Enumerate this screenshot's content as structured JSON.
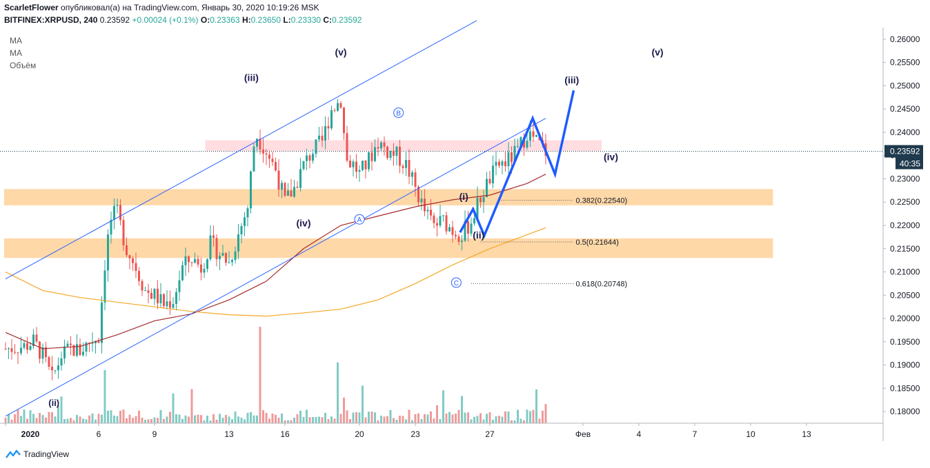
{
  "header": {
    "author": "ScarletFlower",
    "published_text": "опубликовал(а) на TradingView.com, Январь 30, 2020 10:19:26 MSK",
    "symbol": "BITFINEX:XRPUSD, 240",
    "price": "0.23592",
    "change": "+0.00024 (+0.1%)",
    "ohlc": {
      "o_label": "O:",
      "o": "0.23363",
      "h_label": "H:",
      "h": "0.23650",
      "l_label": "L:",
      "l": "0.23330",
      "c_label": "C:",
      "c": "0.23592"
    }
  },
  "indicators": [
    "MA",
    "MA",
    "Объём"
  ],
  "price_tag": {
    "value": "0.23592",
    "countdown": "40:35"
  },
  "footer": {
    "brand": "TradingView"
  },
  "colors": {
    "up": "#26a69a",
    "down": "#ef5350",
    "vol_up": "#80cbc4",
    "vol_down": "#ef9a9a",
    "ma_fast": "#a52a2a",
    "ma_slow": "#f5a623",
    "channel": "#2962ff",
    "wave": "#1e5cff",
    "zone_orange": "#ffd8a8",
    "zone_pink": "#ffdde1",
    "price_tag": "#1e3a4c"
  },
  "chart_data": {
    "type": "candlestick",
    "y_axis": {
      "min": 0.1775,
      "max": 0.2625,
      "ticks": [
        "0.26000",
        "0.25500",
        "0.25000",
        "0.24500",
        "0.24000",
        "0.23500",
        "0.23000",
        "0.22500",
        "0.22000",
        "0.21500",
        "0.21000",
        "0.20500",
        "0.20000",
        "0.19500",
        "0.19000",
        "0.18500",
        "0.18000"
      ]
    },
    "x_axis": {
      "ticks": [
        {
          "label": "2020",
          "day": 1
        },
        {
          "label": "6",
          "day": 6
        },
        {
          "label": "9",
          "day": 9
        },
        {
          "label": "13",
          "day": 13
        },
        {
          "label": "16",
          "day": 16
        },
        {
          "label": "20",
          "day": 20
        },
        {
          "label": "23",
          "day": 23
        },
        {
          "label": "27",
          "day": 27
        },
        {
          "label": "Фев",
          "day": 32
        },
        {
          "label": "4",
          "day": 35
        },
        {
          "label": "7",
          "day": 38
        },
        {
          "label": "10",
          "day": 41
        },
        {
          "label": "13",
          "day": 44
        }
      ]
    },
    "price_path": [
      [
        1,
        0.1935
      ],
      [
        2,
        0.194
      ],
      [
        2.5,
        0.195
      ],
      [
        3,
        0.192
      ],
      [
        3.5,
        0.187
      ],
      [
        4,
        0.192
      ],
      [
        4.5,
        0.1935
      ],
      [
        5,
        0.193
      ],
      [
        5.5,
        0.195
      ],
      [
        6,
        0.196
      ],
      [
        6.4,
        0.215
      ],
      [
        6.7,
        0.222
      ],
      [
        7,
        0.2225
      ],
      [
        7.5,
        0.215
      ],
      [
        8,
        0.211
      ],
      [
        8.5,
        0.206
      ],
      [
        9,
        0.205
      ],
      [
        9.5,
        0.203
      ],
      [
        10,
        0.204
      ],
      [
        10.5,
        0.211
      ],
      [
        11,
        0.213
      ],
      [
        11.5,
        0.211
      ],
      [
        12,
        0.216
      ],
      [
        12.5,
        0.214
      ],
      [
        13,
        0.212
      ],
      [
        13.5,
        0.218
      ],
      [
        14,
        0.224
      ],
      [
        14.4,
        0.24
      ],
      [
        14.7,
        0.238
      ],
      [
        15,
        0.236
      ],
      [
        15.5,
        0.232
      ],
      [
        16,
        0.225
      ],
      [
        16.5,
        0.228
      ],
      [
        17,
        0.233
      ],
      [
        17.5,
        0.236
      ],
      [
        18,
        0.238
      ],
      [
        18.5,
        0.245
      ],
      [
        19,
        0.247
      ],
      [
        19.3,
        0.234
      ],
      [
        19.7,
        0.233
      ],
      [
        20,
        0.231
      ],
      [
        20.5,
        0.234
      ],
      [
        21,
        0.238
      ],
      [
        21.5,
        0.236
      ],
      [
        22,
        0.235
      ],
      [
        22.5,
        0.233
      ],
      [
        23,
        0.228
      ],
      [
        23.5,
        0.223
      ],
      [
        24,
        0.22
      ],
      [
        24.5,
        0.221
      ],
      [
        25,
        0.219
      ],
      [
        25.5,
        0.218
      ],
      [
        26,
        0.221
      ],
      [
        26.5,
        0.226
      ],
      [
        27,
        0.23
      ],
      [
        27.5,
        0.233
      ],
      [
        28,
        0.234
      ],
      [
        28.5,
        0.236
      ],
      [
        29,
        0.24
      ],
      [
        29.5,
        0.238
      ],
      [
        30,
        0.2359
      ]
    ],
    "moving_averages": [
      {
        "name": "MA",
        "color": "ma_fast",
        "points": [
          [
            1,
            0.197
          ],
          [
            3,
            0.1935
          ],
          [
            5,
            0.194
          ],
          [
            7,
            0.1965
          ],
          [
            9,
            0.1995
          ],
          [
            11,
            0.201
          ],
          [
            13,
            0.204
          ],
          [
            15,
            0.208
          ],
          [
            17,
            0.215
          ],
          [
            19,
            0.22
          ],
          [
            21,
            0.222
          ],
          [
            23,
            0.224
          ],
          [
            25,
            0.2255
          ],
          [
            27,
            0.2265
          ],
          [
            29,
            0.229
          ],
          [
            30,
            0.231
          ]
        ]
      },
      {
        "name": "MA",
        "color": "ma_slow",
        "points": [
          [
            1,
            0.21
          ],
          [
            3,
            0.206
          ],
          [
            5,
            0.2045
          ],
          [
            7,
            0.2035
          ],
          [
            9,
            0.2025
          ],
          [
            11,
            0.2015
          ],
          [
            13,
            0.2008
          ],
          [
            15,
            0.2005
          ],
          [
            17,
            0.2012
          ],
          [
            19,
            0.202
          ],
          [
            21,
            0.204
          ],
          [
            23,
            0.2075
          ],
          [
            25,
            0.2115
          ],
          [
            27,
            0.215
          ],
          [
            29,
            0.218
          ],
          [
            30,
            0.2195
          ]
        ]
      }
    ],
    "zones": [
      {
        "y1": 0.2383,
        "y2": 0.236,
        "x1": 11.8,
        "x2": 33.0,
        "color": "zone_pink"
      },
      {
        "y1": 0.2278,
        "y2": 0.2243,
        "x1": 1,
        "x2": 42.2,
        "color": "zone_orange"
      },
      {
        "y1": 0.2172,
        "y2": 0.213,
        "x1": 1,
        "x2": 42.2,
        "color": "zone_orange"
      }
    ],
    "channel": [
      {
        "x1": 1,
        "y1": 0.2085,
        "x2": 26.3,
        "y2": 0.264
      },
      {
        "x1": 1,
        "y1": 0.179,
        "x2": 30,
        "y2": 0.243
      }
    ],
    "fib_levels": [
      {
        "label": "0.382(0.22540)",
        "value": 0.2254,
        "x1": 27.5,
        "x2": 31.5
      },
      {
        "label": "0.5(0.21644)",
        "value": 0.21644,
        "x1": 26.5,
        "x2": 31.5
      },
      {
        "label": "0.618(0.20748)",
        "value": 0.20748,
        "x1": 26.0,
        "x2": 31.5
      }
    ],
    "wave_projection": [
      [
        25.4,
        0.2185
      ],
      [
        26.1,
        0.2235
      ],
      [
        26.7,
        0.2178
      ],
      [
        29.3,
        0.243
      ],
      [
        30.5,
        0.231
      ],
      [
        31.5,
        0.249
      ]
    ],
    "wave_labels": [
      {
        "text": "(ii)",
        "day": 3.6,
        "value": 0.1812,
        "size": 13
      },
      {
        "text": "(iii)",
        "day": 14.2,
        "value": 0.251,
        "size": 14
      },
      {
        "text": "(iv)",
        "day": 17,
        "value": 0.2198,
        "size": 14
      },
      {
        "text": "(v)",
        "day": 19,
        "value": 0.2565,
        "size": 14
      },
      {
        "text": "(i)",
        "day": 25.6,
        "value": 0.2255,
        "size": 14
      },
      {
        "text": "(ii)",
        "day": 26.4,
        "value": 0.2172,
        "size": 14
      },
      {
        "text": "(iii)",
        "day": 31.4,
        "value": 0.2505,
        "size": 14
      },
      {
        "text": "(iv)",
        "day": 33.5,
        "value": 0.234,
        "size": 14
      },
      {
        "text": "(v)",
        "day": 36.0,
        "value": 0.2565,
        "size": 14
      }
    ],
    "circle_labels": [
      {
        "text": "B",
        "day": 22.1,
        "value": 0.2442
      },
      {
        "text": "A",
        "day": 20.0,
        "value": 0.2213
      },
      {
        "text": "C",
        "day": 25.2,
        "value": 0.2077
      }
    ],
    "volume_spikes": [
      [
        6.3,
        0.55
      ],
      [
        14.7,
        1.0
      ],
      [
        18.8,
        0.63
      ],
      [
        29.5,
        0.35
      ]
    ],
    "last_price": 0.23592
  }
}
